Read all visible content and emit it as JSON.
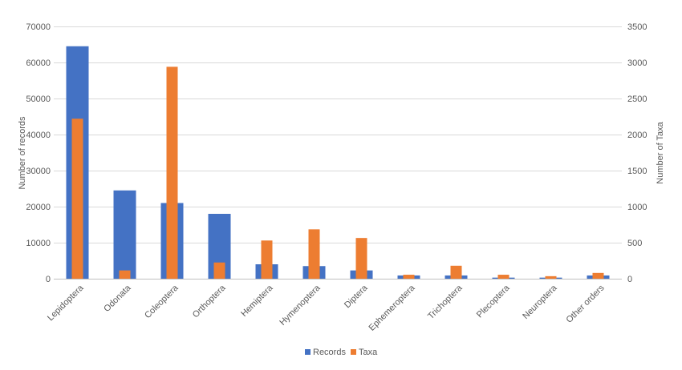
{
  "chart_data": {
    "type": "bar",
    "title": "",
    "xlabel": "",
    "ylabel": "Number  of records",
    "y2label": "Number  of Taxa",
    "ylim": [
      0,
      70000
    ],
    "y2lim": [
      0,
      3500
    ],
    "yticks": [
      0,
      10000,
      20000,
      30000,
      40000,
      50000,
      60000,
      70000
    ],
    "y2ticks": [
      0,
      500,
      1000,
      1500,
      2000,
      2500,
      3000,
      3500
    ],
    "grid": true,
    "legend_position": "bottom",
    "categories": [
      "Lepidoptera",
      "Odonata",
      "Coleoptera",
      "Orthoptera",
      "Hemiptera",
      "Hymenoptera",
      "Diptera",
      "Ephemeroptera",
      "Trichoptera",
      "Plecoptera",
      "Neuroptera",
      "Other orders"
    ],
    "series": [
      {
        "name": "Records",
        "axis": "left",
        "color": "#4472C4",
        "values": [
          64500,
          24500,
          21000,
          18000,
          4000,
          3500,
          2300,
          900,
          900,
          300,
          300,
          900
        ]
      },
      {
        "name": "Taxa",
        "axis": "right",
        "color": "#ED7D31",
        "values": [
          2220,
          115,
          2940,
          225,
          530,
          685,
          565,
          55,
          180,
          55,
          35,
          80
        ]
      }
    ]
  }
}
